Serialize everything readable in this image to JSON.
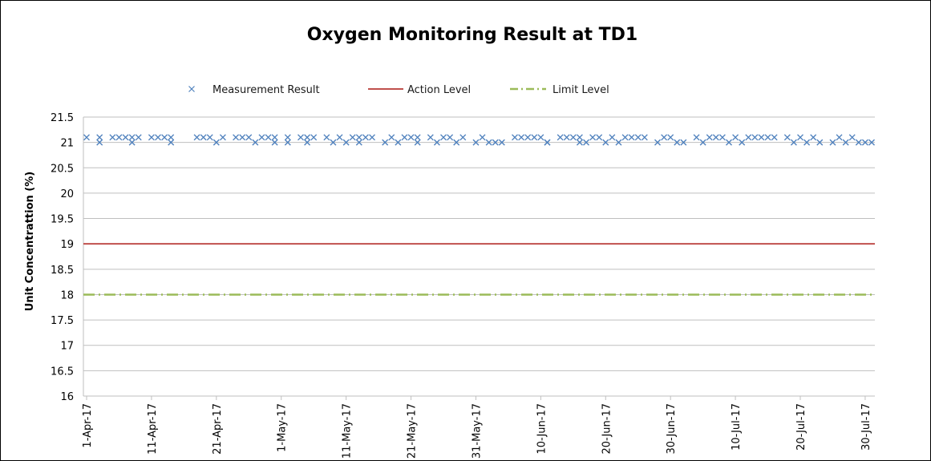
{
  "chart_data": {
    "type": "scatter",
    "title": "Oxygen Monitoring Result at TD1",
    "xlabel": "",
    "ylabel": "Unit Concentrattion (%)",
    "ylim": [
      16,
      21.5
    ],
    "yticks": [
      "21.5",
      "21",
      "20.5",
      "20",
      "19.5",
      "19",
      "18.5",
      "18",
      "17.5",
      "17",
      "16.5",
      "16"
    ],
    "xlim": [
      "2017-04-01",
      "2017-07-31"
    ],
    "xtick_labels": [
      "1-Apr-17",
      "11-Apr-17",
      "21-Apr-17",
      "1-May-17",
      "11-May-17",
      "21-May-17",
      "31-May-17",
      "10-Jun-17",
      "20-Jun-17",
      "30-Jun-17",
      "10-Jul-17",
      "20-Jul-17",
      "30-Jul-17"
    ],
    "xtick_dates": [
      "2017-04-01",
      "2017-04-11",
      "2017-04-21",
      "2017-05-01",
      "2017-05-11",
      "2017-05-21",
      "2017-05-31",
      "2017-06-10",
      "2017-06-20",
      "2017-06-30",
      "2017-07-10",
      "2017-07-20",
      "2017-07-30"
    ],
    "grid": true,
    "legend_position": "top",
    "legend": [
      "Measurement Result",
      "Action Level",
      "Limit Level"
    ],
    "series": [
      {
        "name": "Measurement Result",
        "marker": "x",
        "color": "#4f81bd",
        "x": [
          "2017-04-01",
          "2017-04-03",
          "2017-04-03",
          "2017-04-05",
          "2017-04-06",
          "2017-04-07",
          "2017-04-08",
          "2017-04-08",
          "2017-04-09",
          "2017-04-11",
          "2017-04-12",
          "2017-04-13",
          "2017-04-14",
          "2017-04-14",
          "2017-04-18",
          "2017-04-19",
          "2017-04-20",
          "2017-04-21",
          "2017-04-22",
          "2017-04-24",
          "2017-04-25",
          "2017-04-26",
          "2017-04-27",
          "2017-04-28",
          "2017-04-29",
          "2017-04-30",
          "2017-04-30",
          "2017-05-02",
          "2017-05-02",
          "2017-05-04",
          "2017-05-05",
          "2017-05-05",
          "2017-05-06",
          "2017-05-08",
          "2017-05-09",
          "2017-05-10",
          "2017-05-11",
          "2017-05-12",
          "2017-05-13",
          "2017-05-13",
          "2017-05-14",
          "2017-05-15",
          "2017-05-17",
          "2017-05-18",
          "2017-05-19",
          "2017-05-20",
          "2017-05-21",
          "2017-05-22",
          "2017-05-22",
          "2017-05-24",
          "2017-05-25",
          "2017-05-26",
          "2017-05-27",
          "2017-05-28",
          "2017-05-29",
          "2017-05-31",
          "2017-06-01",
          "2017-06-02",
          "2017-06-03",
          "2017-06-04",
          "2017-06-06",
          "2017-06-07",
          "2017-06-08",
          "2017-06-09",
          "2017-06-10",
          "2017-06-11",
          "2017-06-11",
          "2017-06-13",
          "2017-06-14",
          "2017-06-15",
          "2017-06-16",
          "2017-06-16",
          "2017-06-17",
          "2017-06-18",
          "2017-06-19",
          "2017-06-20",
          "2017-06-21",
          "2017-06-22",
          "2017-06-23",
          "2017-06-24",
          "2017-06-25",
          "2017-06-26",
          "2017-06-28",
          "2017-06-29",
          "2017-06-30",
          "2017-07-01",
          "2017-07-02",
          "2017-07-04",
          "2017-07-05",
          "2017-07-06",
          "2017-07-07",
          "2017-07-08",
          "2017-07-09",
          "2017-07-10",
          "2017-07-11",
          "2017-07-12",
          "2017-07-13",
          "2017-07-14",
          "2017-07-15",
          "2017-07-16",
          "2017-07-18",
          "2017-07-19",
          "2017-07-20",
          "2017-07-21",
          "2017-07-22",
          "2017-07-23",
          "2017-07-25",
          "2017-07-26",
          "2017-07-27",
          "2017-07-28",
          "2017-07-29",
          "2017-07-30",
          "2017-07-31"
        ],
        "y": [
          21.1,
          21.1,
          21.0,
          21.1,
          21.1,
          21.1,
          21.1,
          21.0,
          21.1,
          21.1,
          21.1,
          21.1,
          21.1,
          21.0,
          21.1,
          21.1,
          21.1,
          21.0,
          21.1,
          21.1,
          21.1,
          21.1,
          21.0,
          21.1,
          21.1,
          21.0,
          21.1,
          21.1,
          21.0,
          21.1,
          21.1,
          21.0,
          21.1,
          21.1,
          21.0,
          21.1,
          21.0,
          21.1,
          21.1,
          21.0,
          21.1,
          21.1,
          21.0,
          21.1,
          21.0,
          21.1,
          21.1,
          21.1,
          21.0,
          21.1,
          21.0,
          21.1,
          21.1,
          21.0,
          21.1,
          21.0,
          21.1,
          21.0,
          21.0,
          21.0,
          21.1,
          21.1,
          21.1,
          21.1,
          21.1,
          21.0,
          21.0,
          21.1,
          21.1,
          21.1,
          21.0,
          21.1,
          21.0,
          21.1,
          21.1,
          21.0,
          21.1,
          21.0,
          21.1,
          21.1,
          21.1,
          21.1,
          21.0,
          21.1,
          21.1,
          21.0,
          21.0,
          21.1,
          21.0,
          21.1,
          21.1,
          21.1,
          21.0,
          21.1,
          21.0,
          21.1,
          21.1,
          21.1,
          21.1,
          21.1,
          21.1,
          21.0,
          21.1,
          21.0,
          21.1,
          21.0,
          21.0,
          21.1,
          21.0,
          21.1,
          21.0,
          21.0,
          21.0
        ]
      },
      {
        "name": "Action Level",
        "color": "#c0504d",
        "value": 19
      },
      {
        "name": "Limit Level",
        "color": "#9bbb59",
        "value": 18
      }
    ]
  }
}
